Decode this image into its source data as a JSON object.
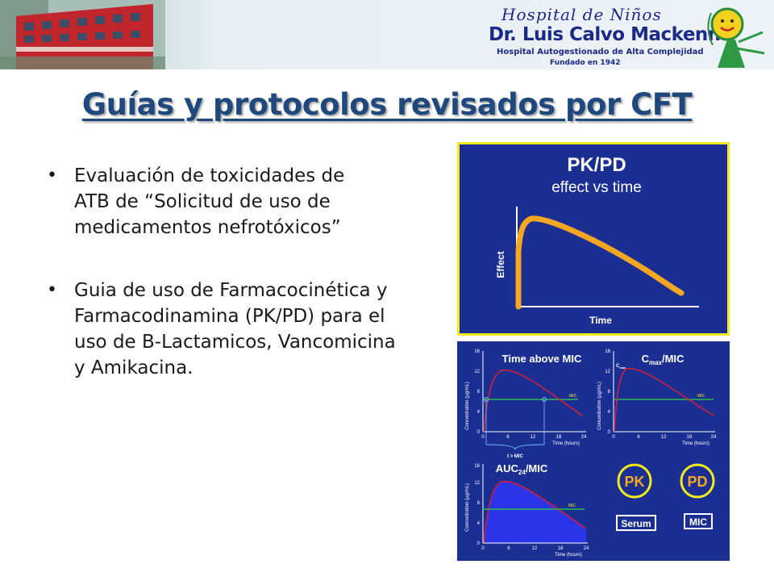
{
  "header": {
    "logo_script": "Hospital de Niños",
    "logo_name": "Dr. Luis Calvo Mackenna",
    "logo_subtitle": "Hospital Autogestionado de Alta Complejidad",
    "logo_founded": "Fundado en 1942"
  },
  "title": "Guías y protocolos revisados por CFT",
  "bullets": [
    "Evaluación de toxicidades de ATB de “Solicitud de uso de medicamentos nefrotóxicos”",
    "Guia de uso de Farmacocinética y Farmacodinamina (PK/PD) para el uso de B-Lactamicos, Vancomicina y Amikacina."
  ],
  "figure_top": {
    "title": "PK/PD",
    "subtitle": "effect vs time",
    "ylabel": "Effect",
    "xlabel": "Time"
  },
  "figure_bottom": {
    "panel1_title": "Time above MIC",
    "panel2_title_main": "C",
    "panel2_title_sub": "max",
    "panel2_title_rest": "/MIC",
    "panel3_title_main": "AUC",
    "panel3_title_sub": "24",
    "panel3_title_rest": "/MIC",
    "ylabel": "Concentration (µg/mL)",
    "xlabel": "Time (hours)",
    "mic_label": "MIC",
    "cmax_label": "C",
    "cmax_sub": "max",
    "t_mic_label": "t > MIC",
    "y_ticks": [
      "0",
      "4",
      "8",
      "12",
      "16"
    ],
    "x_ticks": [
      "0",
      "6",
      "12",
      "18",
      "24"
    ],
    "pk_label": "PK",
    "pd_label": "PD",
    "serum_label": "Serum",
    "mic_box_label": "MIC"
  },
  "colors": {
    "title": "#1f497d",
    "figure_bg": "#1b2f93",
    "figure_border": "#f2ea1c",
    "curve": "#f5a623",
    "pk_text": "#f5a623",
    "mic_line": "#2dbb4e",
    "conc_curve": "#d81e35"
  }
}
